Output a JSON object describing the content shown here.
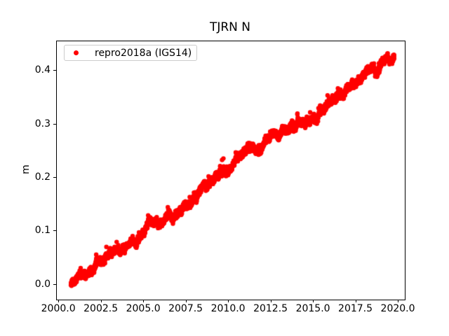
{
  "chart_data": {
    "type": "scatter",
    "title": "TJRN N",
    "xlabel": "",
    "ylabel": "m",
    "grid": false,
    "legend_position": "upper-left",
    "legend": [
      {
        "label": "repro2018a (IGS14)",
        "marker": "dot",
        "color": "#ff0000"
      }
    ],
    "xlim": [
      1999.87,
      2020.37
    ],
    "ylim": [
      -0.0275,
      0.455
    ],
    "x_ticks": [
      2000.0,
      2002.5,
      2005.0,
      2007.5,
      2010.0,
      2012.5,
      2015.0,
      2017.5,
      2020.0
    ],
    "x_tick_labels": [
      "2000.0",
      "2002.5",
      "2005.0",
      "2007.5",
      "2010.0",
      "2012.5",
      "2015.0",
      "2017.5",
      "2020.0"
    ],
    "y_ticks": [
      0.0,
      0.1,
      0.2,
      0.3,
      0.4
    ],
    "y_tick_labels": [
      "0.0",
      "0.1",
      "0.2",
      "0.3",
      "0.4"
    ],
    "series": [
      {
        "name": "repro2018a (IGS14)",
        "color": "#ff0000",
        "marker_radius_px": 3.2,
        "x_start": 2000.7,
        "x_end": 2019.75,
        "y_start_mean": 0.004,
        "y_end_mean": 0.425,
        "trend_slope_m_per_year": 0.0221,
        "samples_per_year": 200,
        "seasonal_amplitude_m": 0.003,
        "noise_sigma_m": 0.0028,
        "wander_sigma_step_m": 0.0004,
        "wander_persistence": 0.995,
        "outlier_fraction": 0.015,
        "outlier_min_m": 0.004,
        "outlier_max_m": 0.016,
        "seed": 42
      }
    ],
    "colors": {
      "marker": "#ff0000",
      "frame": "#000000",
      "legend_border": "#cccccc",
      "background": "#ffffff"
    }
  }
}
